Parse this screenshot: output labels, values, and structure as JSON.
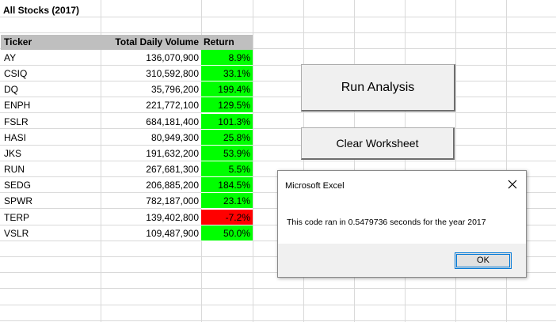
{
  "sheet": {
    "title": "All Stocks (2017)",
    "headers": {
      "ticker": "Ticker",
      "volume": "Total Daily Volume",
      "return": "Return"
    },
    "rows": [
      {
        "ticker": "AY",
        "volume": "136,070,900",
        "return": "8.9%",
        "positive": true
      },
      {
        "ticker": "CSIQ",
        "volume": "310,592,800",
        "return": "33.1%",
        "positive": true
      },
      {
        "ticker": "DQ",
        "volume": "35,796,200",
        "return": "199.4%",
        "positive": true
      },
      {
        "ticker": "ENPH",
        "volume": "221,772,100",
        "return": "129.5%",
        "positive": true
      },
      {
        "ticker": "FSLR",
        "volume": "684,181,400",
        "return": "101.3%",
        "positive": true
      },
      {
        "ticker": "HASI",
        "volume": "80,949,300",
        "return": "25.8%",
        "positive": true
      },
      {
        "ticker": "JKS",
        "volume": "191,632,200",
        "return": "53.9%",
        "positive": true
      },
      {
        "ticker": "RUN",
        "volume": "267,681,300",
        "return": "5.5%",
        "positive": true
      },
      {
        "ticker": "SEDG",
        "volume": "206,885,200",
        "return": "184.5%",
        "positive": true
      },
      {
        "ticker": "SPWR",
        "volume": "782,187,000",
        "return": "23.1%",
        "positive": true
      },
      {
        "ticker": "TERP",
        "volume": "139,402,800",
        "return": "-7.2%",
        "positive": false
      },
      {
        "ticker": "VSLR",
        "volume": "109,487,900",
        "return": "50.0%",
        "positive": true
      }
    ],
    "colors": {
      "positive": "#00ff00",
      "negative": "#ff0000",
      "header_bg": "#bfbfbf",
      "gridline": "#d9d9d9"
    }
  },
  "buttons": {
    "run_analysis": "Run Analysis",
    "clear_worksheet": "Clear Worksheet"
  },
  "dialog": {
    "title": "Microsoft Excel",
    "message": "This code ran in 0.5479736 seconds for the year 2017",
    "ok_label": "OK",
    "close_icon": "close-icon"
  }
}
